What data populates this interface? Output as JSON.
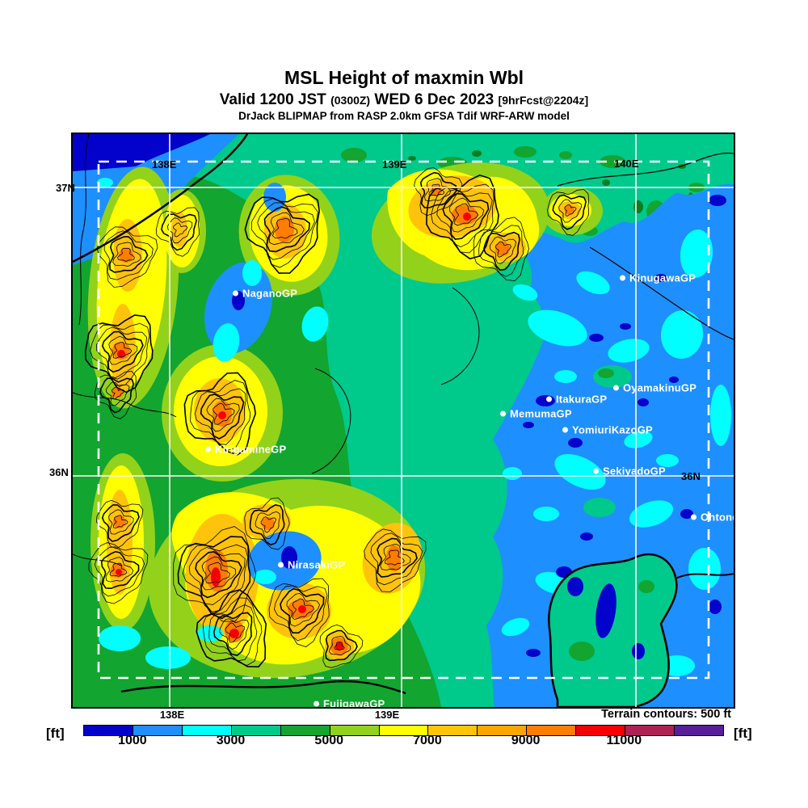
{
  "header": {
    "title": "MSL Height of maxmin Wbl",
    "valid_prefix": "Valid 1200 JST",
    "valid_zulu": "(0300Z)",
    "valid_date": "WED 6 Dec 2023",
    "valid_fcst": "[9hrFcst@2204z]",
    "model_line": "DrJack BLIPMAP from RASP 2.0km GFSA Tdif WRF-ARW model"
  },
  "map": {
    "lon_labels_top": [
      "138E",
      "139E",
      "140E"
    ],
    "lon_labels_bottom": [
      "138E",
      "139E"
    ],
    "lat_labels_left": [
      "37N",
      "36N"
    ],
    "lat_label_right": "36N",
    "stations": [
      {
        "label": "NaganoGP"
      },
      {
        "label": "KinugawaGP"
      },
      {
        "label": "OyamakinuGP"
      },
      {
        "label": "ItakuraGP"
      },
      {
        "label": "MemumaGP"
      },
      {
        "label": "YomiuriKazoGP"
      },
      {
        "label": "SekiyadoGP"
      },
      {
        "label": "OhtoneGP"
      },
      {
        "label": "KirigamineGP"
      },
      {
        "label": "NirasakiGP"
      },
      {
        "label": "FujigawaGP"
      }
    ]
  },
  "footer": {
    "terrain_note": "Terrain contours: 500 ft"
  },
  "colorbar": {
    "unit": "[ft]",
    "max_value": 13000,
    "colors": [
      "#0202cc",
      "#1e8fff",
      "#00ffff",
      "#00c98c",
      "#12a52f",
      "#93d21a",
      "#ffff00",
      "#ffc30b",
      "#ffa500",
      "#ff7d00",
      "#f40000",
      "#af2155",
      "#5a1e9b"
    ],
    "ticks": [
      {
        "label": "1000",
        "value": 1000
      },
      {
        "label": "3000",
        "value": 3000
      },
      {
        "label": "5000",
        "value": 5000
      },
      {
        "label": "7000",
        "value": 7000
      },
      {
        "label": "9000",
        "value": 9000
      },
      {
        "label": "11000",
        "value": 11000
      }
    ]
  }
}
